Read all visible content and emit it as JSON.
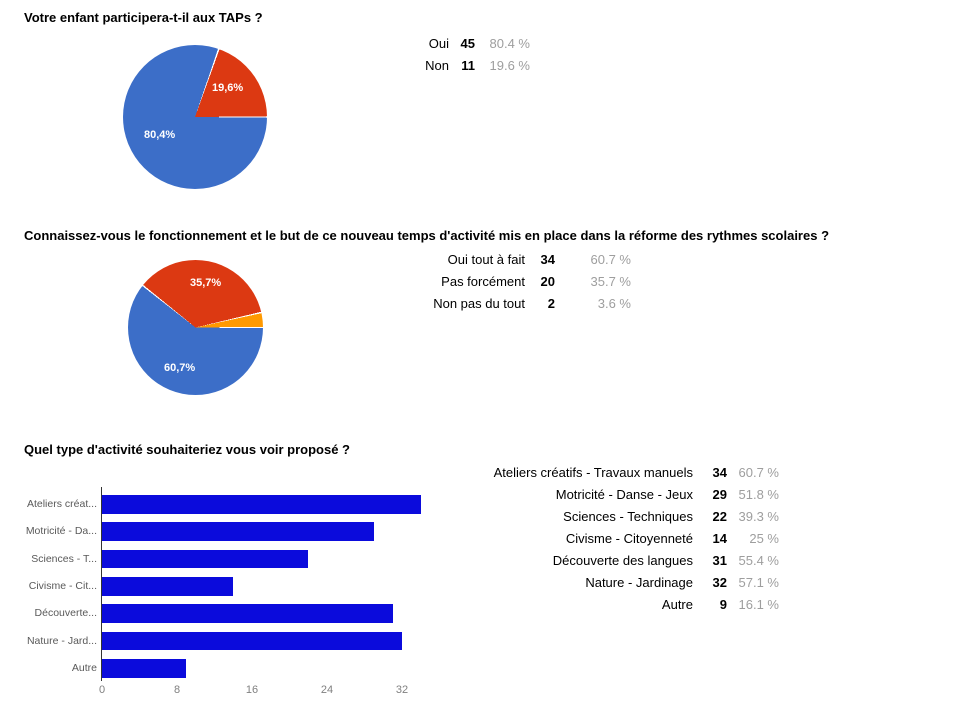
{
  "questions": [
    {
      "title": "Votre enfant participera-t-il aux TAPs ?",
      "table": {
        "rows": [
          {
            "label": "Oui",
            "count": "45",
            "pct": "80.4 %"
          },
          {
            "label": "Non",
            "count": "11",
            "pct": "19.6 %"
          }
        ]
      }
    },
    {
      "title": "Connaissez-vous le fonctionnement et le but de ce nouveau temps d'activité mis en place dans la réforme des rythmes scolaires ?",
      "table": {
        "rows": [
          {
            "label": "Oui tout à fait",
            "count": "34",
            "pct": "60.7 %"
          },
          {
            "label": "Pas forcément",
            "count": "20",
            "pct": "35.7 %"
          },
          {
            "label": "Non pas du tout",
            "count": "2",
            "pct": "3.6 %"
          }
        ]
      }
    },
    {
      "title": "Quel type d'activité souhaiteriez vous voir proposé ?",
      "table": {
        "rows": [
          {
            "label": "Ateliers créatifs - Travaux manuels",
            "count": "34",
            "pct": "60.7 %"
          },
          {
            "label": "Motricité - Danse - Jeux",
            "count": "29",
            "pct": "51.8 %"
          },
          {
            "label": "Sciences - Techniques",
            "count": "22",
            "pct": "39.3 %"
          },
          {
            "label": "Civisme - Citoyenneté",
            "count": "14",
            "pct": "25 %"
          },
          {
            "label": "Découverte des langues",
            "count": "31",
            "pct": "55.4 %"
          },
          {
            "label": "Nature - Jardinage",
            "count": "32",
            "pct": "57.1 %"
          },
          {
            "label": "Autre",
            "count": "9",
            "pct": "16.1 %"
          }
        ]
      }
    }
  ],
  "chart_data": [
    {
      "type": "pie",
      "title": "Votre enfant participera-t-il aux TAPs ?",
      "labels": [
        "Oui",
        "Non"
      ],
      "values": [
        45,
        11
      ],
      "percents": [
        80.4,
        19.6
      ],
      "slice_labels": [
        "80,4%",
        "19,6%"
      ],
      "colors": [
        "#3c6ec8",
        "#dc3912"
      ],
      "start_angle": "3-oclock-clockwise",
      "legend_position": "none"
    },
    {
      "type": "pie",
      "title": "Connaissez-vous le fonctionnement et le but de ce nouveau temps d'activité mis en place dans la réforme des rythmes scolaires ?",
      "labels": [
        "Oui tout à fait",
        "Pas forcément",
        "Non pas du tout"
      ],
      "values": [
        34,
        20,
        2
      ],
      "percents": [
        60.7,
        35.7,
        3.6
      ],
      "slice_labels": [
        "60,7%",
        "35,7%",
        ""
      ],
      "colors": [
        "#3c6ec8",
        "#dc3912",
        "#ff9900"
      ],
      "start_angle": "3-oclock-clockwise",
      "legend_position": "none"
    },
    {
      "type": "bar",
      "orientation": "horizontal",
      "title": "Quel type d'activité souhaiteriez vous voir proposé ?",
      "categories": [
        "Ateliers créatifs - Travaux manuels",
        "Motricité - Danse - Jeux",
        "Sciences - Techniques",
        "Civisme - Citoyenneté",
        "Découverte des langues",
        "Nature - Jardinage",
        "Autre"
      ],
      "display_labels": [
        "Ateliers créat...",
        "Motricité - Da...",
        "Sciences - T...",
        "Civisme - Cit...",
        "Découverte...",
        "Nature - Jard...",
        "Autre"
      ],
      "values": [
        34,
        29,
        22,
        14,
        31,
        32,
        9
      ],
      "xticks": [
        0,
        8,
        16,
        24,
        32
      ],
      "xlim": [
        0,
        34.4
      ],
      "bar_color": "#0b0bdc",
      "grid": false,
      "legend_position": "none"
    }
  ],
  "colors": {
    "pie_blue": "#3c6ec8",
    "pie_red": "#dc3912",
    "pie_orange": "#ff9900",
    "bar_blue": "#0b0bdc",
    "percent_gray": "#9e9e9e",
    "axis_label_gray": "#808080",
    "category_label_gray": "#595959"
  }
}
